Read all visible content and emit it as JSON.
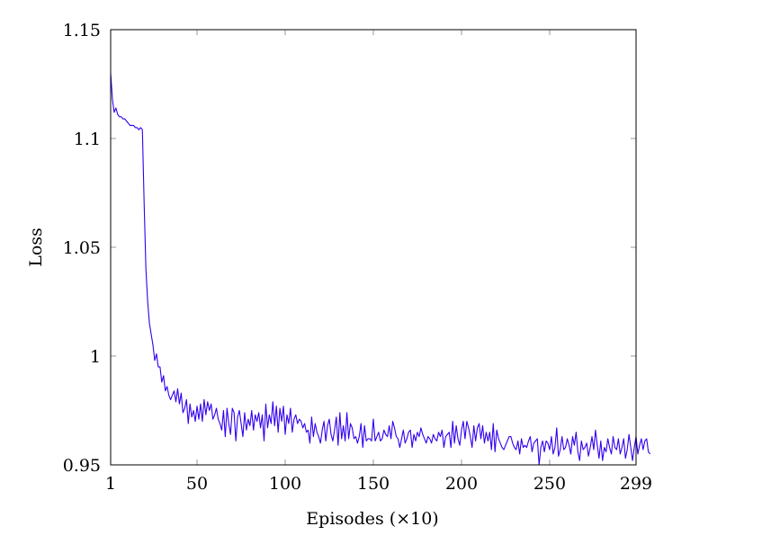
{
  "chart_data": {
    "type": "line",
    "title": "",
    "xlabel": "Episodes (×10)",
    "ylabel": "Loss",
    "xlim": [
      1,
      299
    ],
    "ylim": [
      0.95,
      1.15
    ],
    "xticks": [
      1,
      50,
      100,
      150,
      200,
      250,
      299
    ],
    "yticks": [
      0.95,
      1,
      1.05,
      1.1,
      1.15
    ],
    "xtick_labels": [
      "1",
      "50",
      "100",
      "150",
      "200",
      "250",
      "299"
    ],
    "ytick_labels": [
      "0.95",
      "1",
      "1.05",
      "1.1",
      "1.15"
    ],
    "grid": false,
    "legend": "none",
    "series": [
      {
        "color": "#3300ee",
        "x_start": 1,
        "x_step": 1,
        "values": [
          1.13,
          1.118,
          1.112,
          1.114,
          1.111,
          1.11,
          1.11,
          1.109,
          1.109,
          1.108,
          1.107,
          1.106,
          1.106,
          1.106,
          1.105,
          1.105,
          1.104,
          1.105,
          1.104,
          1.07,
          1.04,
          1.025,
          1.015,
          1.01,
          1.005,
          0.998,
          1.001,
          0.995,
          0.995,
          0.988,
          0.991,
          0.984,
          0.986,
          0.982,
          0.98,
          0.982,
          0.984,
          0.979,
          0.985,
          0.978,
          0.983,
          0.974,
          0.976,
          0.98,
          0.969,
          0.978,
          0.972,
          0.975,
          0.97,
          0.977,
          0.971,
          0.978,
          0.97,
          0.98,
          0.973,
          0.979,
          0.975,
          0.978,
          0.971,
          0.973,
          0.976,
          0.971,
          0.969,
          0.966,
          0.975,
          0.963,
          0.976,
          0.969,
          0.964,
          0.976,
          0.974,
          0.961,
          0.972,
          0.975,
          0.969,
          0.963,
          0.974,
          0.966,
          0.971,
          0.968,
          0.975,
          0.966,
          0.973,
          0.97,
          0.974,
          0.967,
          0.973,
          0.961,
          0.978,
          0.967,
          0.973,
          0.969,
          0.979,
          0.968,
          0.977,
          0.965,
          0.976,
          0.97,
          0.977,
          0.964,
          0.973,
          0.969,
          0.976,
          0.965,
          0.971,
          0.973,
          0.969,
          0.971,
          0.97,
          0.967,
          0.969,
          0.965,
          0.966,
          0.96,
          0.972,
          0.963,
          0.969,
          0.965,
          0.963,
          0.96,
          0.966,
          0.97,
          0.961,
          0.968,
          0.971,
          0.964,
          0.961,
          0.966,
          0.972,
          0.959,
          0.974,
          0.962,
          0.968,
          0.961,
          0.974,
          0.962,
          0.969,
          0.967,
          0.962,
          0.963,
          0.96,
          0.963,
          0.969,
          0.958,
          0.968,
          0.961,
          0.962,
          0.962,
          0.961,
          0.971,
          0.961,
          0.963,
          0.965,
          0.961,
          0.962,
          0.966,
          0.964,
          0.963,
          0.968,
          0.962,
          0.97,
          0.967,
          0.963,
          0.962,
          0.958,
          0.962,
          0.966,
          0.96,
          0.962,
          0.965,
          0.966,
          0.958,
          0.964,
          0.961,
          0.965,
          0.963,
          0.967,
          0.964,
          0.962,
          0.96,
          0.963,
          0.962,
          0.96,
          0.964,
          0.962,
          0.961,
          0.965,
          0.963,
          0.966,
          0.958,
          0.963,
          0.964,
          0.965,
          0.958,
          0.97,
          0.96,
          0.968,
          0.962,
          0.959,
          0.966,
          0.97,
          0.962,
          0.97,
          0.967,
          0.963,
          0.958,
          0.968,
          0.961,
          0.967,
          0.969,
          0.962,
          0.968,
          0.96,
          0.965,
          0.961,
          0.965,
          0.957,
          0.969,
          0.956,
          0.966,
          0.962,
          0.96,
          0.958,
          0.957,
          0.959,
          0.961,
          0.963,
          0.963,
          0.96,
          0.958,
          0.957,
          0.961,
          0.955,
          0.962,
          0.958,
          0.959,
          0.958,
          0.961,
          0.963,
          0.956,
          0.96,
          0.961,
          0.962,
          0.95,
          0.958,
          0.961,
          0.956,
          0.961,
          0.96,
          0.957,
          0.963,
          0.955,
          0.958,
          0.967,
          0.954,
          0.957,
          0.963,
          0.957,
          0.958,
          0.962,
          0.959,
          0.955,
          0.963,
          0.959,
          0.965,
          0.956,
          0.952,
          0.961,
          0.957,
          0.958,
          0.96,
          0.954,
          0.958,
          0.963,
          0.957,
          0.966,
          0.959,
          0.953,
          0.961,
          0.952,
          0.958,
          0.956,
          0.962,
          0.958,
          0.955,
          0.963,
          0.958,
          0.957,
          0.962,
          0.955,
          0.958,
          0.962,
          0.953,
          0.957,
          0.964,
          0.958,
          0.952,
          0.958,
          0.963,
          0.955,
          0.959,
          0.962,
          0.957,
          0.961,
          0.962,
          0.956,
          0.955
        ]
      }
    ]
  }
}
